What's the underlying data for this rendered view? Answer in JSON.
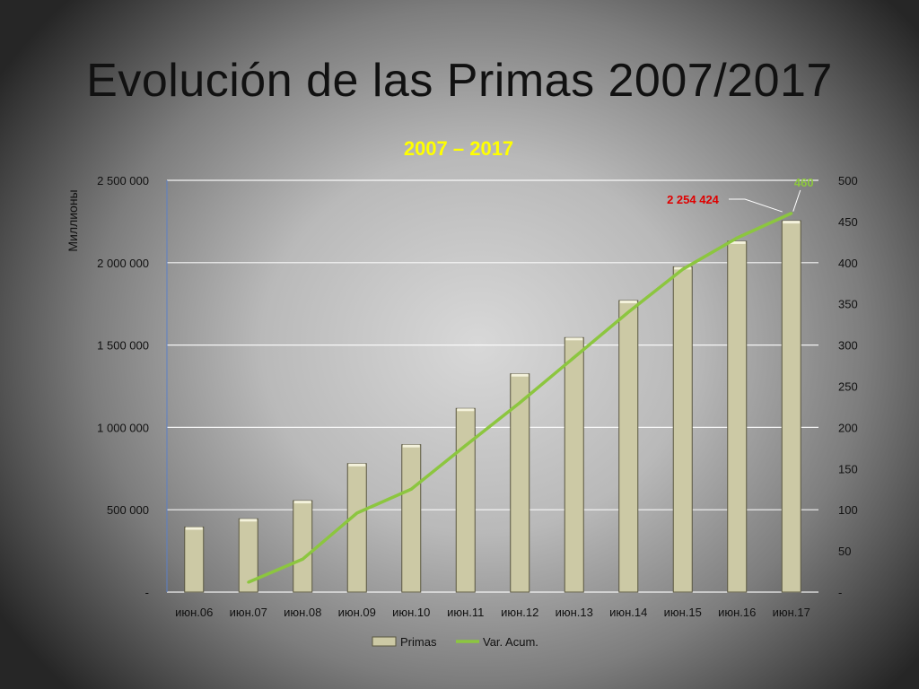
{
  "slide": {
    "title": "Evolución de las Primas 2007/2017"
  },
  "colors": {
    "bar_fill": "#ccc9a5",
    "bar_stroke": "#5a5740",
    "line": "#8cc63f",
    "title": "#ffff00",
    "callout_red": "#e00000"
  },
  "chart_data": {
    "type": "bar",
    "title": "2007 – 2017",
    "ylabel": "Миллионы",
    "y2label": "",
    "categories": [
      "июн.06",
      "июн.07",
      "июн.08",
      "июн.09",
      "июн.10",
      "июн.11",
      "июн.12",
      "июн.13",
      "июн.14",
      "июн.15",
      "июн.16",
      "июн.17"
    ],
    "ylim": [
      0,
      2500000
    ],
    "y2lim": [
      0,
      500
    ],
    "yticks": [
      "-",
      "500 000",
      "1 000 000",
      "1 500 000",
      "2 000 000",
      "2 500 000"
    ],
    "y2ticks": [
      "-",
      "50",
      "100",
      "150",
      "200",
      "250",
      "300",
      "350",
      "400",
      "450",
      "500"
    ],
    "series": [
      {
        "name": "Primas",
        "type": "bar",
        "axis": "left",
        "values": [
          395000,
          445000,
          555000,
          780000,
          895000,
          1115000,
          1325000,
          1545000,
          1770000,
          1975000,
          2130000,
          2254424
        ]
      },
      {
        "name": "Var. Acum.",
        "type": "line",
        "axis": "right",
        "values": [
          null,
          12,
          40,
          96,
          125,
          178,
          230,
          285,
          340,
          392,
          430,
          460
        ]
      }
    ],
    "annotations": [
      {
        "series": "Primas",
        "index": 11,
        "text": "2 254 424"
      },
      {
        "series": "Var. Acum.",
        "index": 11,
        "text": "460"
      }
    ],
    "legend": {
      "position": "bottom"
    },
    "grid": true
  }
}
